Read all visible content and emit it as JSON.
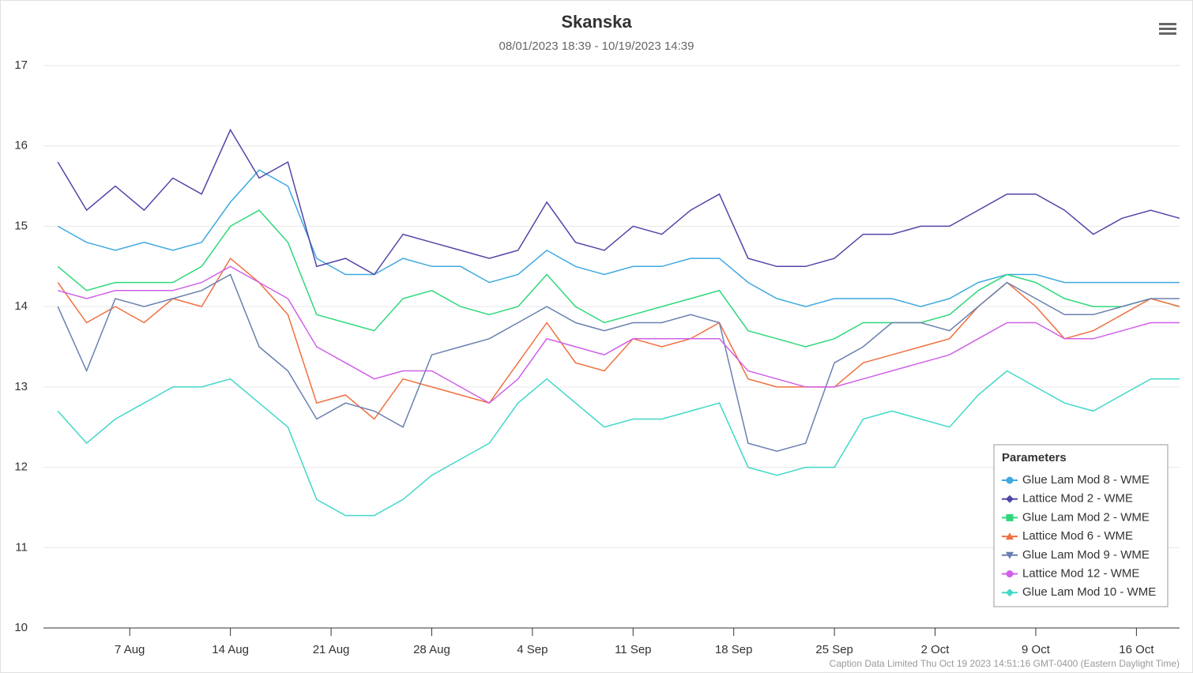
{
  "chart_data": {
    "type": "line",
    "title": "Skanska",
    "subtitle": "08/01/2023 18:39 - 10/19/2023 14:39",
    "x": [
      "2 Aug",
      "4 Aug",
      "6 Aug",
      "8 Aug",
      "10 Aug",
      "12 Aug",
      "14 Aug",
      "16 Aug",
      "18 Aug",
      "20 Aug",
      "22 Aug",
      "24 Aug",
      "26 Aug",
      "28 Aug",
      "30 Aug",
      "1 Sep",
      "3 Sep",
      "5 Sep",
      "7 Sep",
      "9 Sep",
      "11 Sep",
      "13 Sep",
      "15 Sep",
      "17 Sep",
      "19 Sep",
      "21 Sep",
      "23 Sep",
      "25 Sep",
      "27 Sep",
      "29 Sep",
      "1 Oct",
      "3 Oct",
      "5 Oct",
      "7 Oct",
      "9 Oct",
      "11 Oct",
      "13 Oct",
      "15 Oct",
      "17 Oct",
      "19 Oct"
    ],
    "xlim": [
      "1 Aug",
      "19 Oct"
    ],
    "xticks": [
      "7 Aug",
      "14 Aug",
      "21 Aug",
      "28 Aug",
      "4 Sep",
      "11 Sep",
      "18 Sep",
      "25 Sep",
      "2 Oct",
      "9 Oct",
      "16 Oct"
    ],
    "ylim": [
      10,
      17
    ],
    "yticks": [
      10,
      11,
      12,
      13,
      14,
      15,
      16,
      17
    ],
    "grid": true,
    "legend": "bottom-right",
    "legend_title": "Parameters",
    "series": [
      {
        "name": "Glue Lam Mod 8 - WME",
        "color": "#3fa9e0",
        "marker": "circle",
        "values": [
          15.0,
          14.8,
          14.7,
          14.8,
          14.7,
          14.8,
          15.3,
          15.7,
          15.5,
          14.6,
          14.4,
          14.4,
          14.6,
          14.5,
          14.5,
          14.3,
          14.4,
          14.7,
          14.5,
          14.4,
          14.5,
          14.5,
          14.6,
          14.6,
          14.3,
          14.1,
          14.0,
          14.1,
          14.1,
          14.1,
          14.0,
          14.1,
          14.3,
          14.4,
          14.4,
          14.3,
          14.3,
          14.3,
          14.3,
          14.3
        ]
      },
      {
        "name": "Lattice Mod 2 - WME",
        "color": "#5046a8",
        "marker": "diamond",
        "values": [
          15.8,
          15.2,
          15.5,
          15.2,
          15.6,
          15.4,
          16.2,
          15.6,
          15.8,
          14.5,
          14.6,
          14.4,
          14.9,
          14.8,
          14.7,
          14.6,
          14.7,
          15.3,
          14.8,
          14.7,
          15.0,
          14.9,
          15.2,
          15.4,
          14.6,
          14.5,
          14.5,
          14.6,
          14.9,
          14.9,
          15.0,
          15.0,
          15.2,
          15.4,
          15.4,
          15.2,
          14.9,
          15.1,
          15.2,
          15.1
        ]
      },
      {
        "name": "Glue Lam Mod 2 - WME",
        "color": "#2ed87a",
        "marker": "square",
        "values": [
          14.5,
          14.2,
          14.3,
          14.3,
          14.3,
          14.5,
          15.0,
          15.2,
          14.8,
          13.9,
          13.8,
          13.7,
          14.1,
          14.2,
          14.0,
          13.9,
          14.0,
          14.4,
          14.0,
          13.8,
          13.9,
          14.0,
          14.1,
          14.2,
          13.7,
          13.6,
          13.5,
          13.6,
          13.8,
          13.8,
          13.8,
          13.9,
          14.2,
          14.4,
          14.3,
          14.1,
          14.0,
          14.0,
          14.1,
          14.0
        ]
      },
      {
        "name": "Lattice Mod 6 - WME",
        "color": "#f07040",
        "marker": "triangle",
        "values": [
          14.3,
          13.8,
          14.0,
          13.8,
          14.1,
          14.0,
          14.6,
          14.3,
          13.9,
          12.8,
          12.9,
          12.6,
          13.1,
          13.0,
          12.9,
          12.8,
          13.3,
          13.8,
          13.3,
          13.2,
          13.6,
          13.5,
          13.6,
          13.8,
          13.1,
          13.0,
          13.0,
          13.0,
          13.3,
          13.4,
          13.5,
          13.6,
          14.0,
          14.3,
          14.0,
          13.6,
          13.7,
          13.9,
          14.1,
          14.0
        ]
      },
      {
        "name": "Glue Lam Mod 9 - WME",
        "color": "#6a80b0",
        "marker": "triangle-down",
        "values": [
          14.0,
          13.2,
          14.1,
          14.0,
          14.1,
          14.2,
          14.4,
          13.5,
          13.2,
          12.6,
          12.8,
          12.7,
          12.5,
          13.4,
          13.5,
          13.6,
          13.8,
          14.0,
          13.8,
          13.7,
          13.8,
          13.8,
          13.9,
          13.8,
          12.3,
          12.2,
          12.3,
          13.3,
          13.5,
          13.8,
          13.8,
          13.7,
          14.0,
          14.3,
          14.1,
          13.9,
          13.9,
          14.0,
          14.1,
          14.1
        ]
      },
      {
        "name": "Lattice Mod 12 - WME",
        "color": "#d060e8",
        "marker": "circle",
        "values": [
          14.2,
          14.1,
          14.2,
          14.2,
          14.2,
          14.3,
          14.5,
          14.3,
          14.1,
          13.5,
          13.3,
          13.1,
          13.2,
          13.2,
          13.0,
          12.8,
          13.1,
          13.6,
          13.5,
          13.4,
          13.6,
          13.6,
          13.6,
          13.6,
          13.2,
          13.1,
          13.0,
          13.0,
          13.1,
          13.2,
          13.3,
          13.4,
          13.6,
          13.8,
          13.8,
          13.6,
          13.6,
          13.7,
          13.8,
          13.8
        ]
      },
      {
        "name": "Glue Lam Mod 10 - WME",
        "color": "#40d8c8",
        "marker": "diamond",
        "values": [
          12.7,
          12.3,
          12.6,
          12.8,
          13.0,
          13.0,
          13.1,
          12.8,
          12.5,
          11.6,
          11.4,
          11.4,
          11.6,
          11.9,
          12.1,
          12.3,
          12.8,
          13.1,
          12.8,
          12.5,
          12.6,
          12.6,
          12.7,
          12.8,
          12.0,
          11.9,
          12.0,
          12.0,
          12.6,
          12.7,
          12.6,
          12.5,
          12.9,
          13.2,
          13.0,
          12.8,
          12.7,
          12.9,
          13.1,
          13.1
        ]
      }
    ],
    "credits": "Caption Data Limited Thu Oct 19 2023 14:51:16 GMT-0400 (Eastern Daylight Time)"
  }
}
